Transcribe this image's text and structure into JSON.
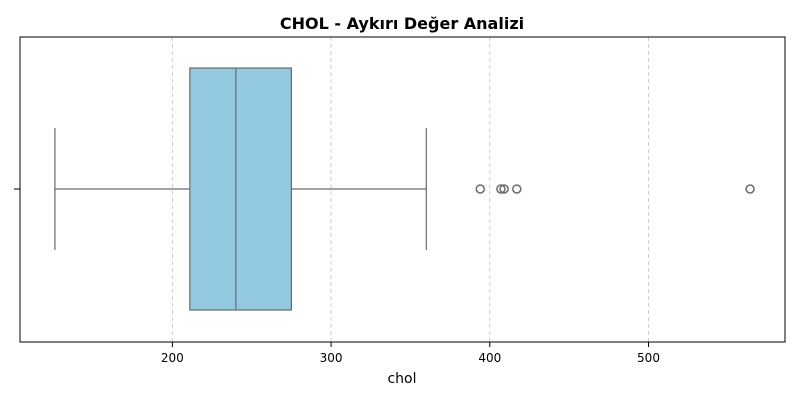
{
  "chart_data": {
    "type": "boxplot",
    "title": "CHOL - Aykırı Değer Analizi",
    "xlabel": "chol",
    "ylabel": "",
    "xlim": [
      104,
      586
    ],
    "xticks": [
      200,
      300,
      400,
      500
    ],
    "grid": "x-dashed",
    "box": {
      "whisker_low": 126,
      "q1": 211,
      "median": 240,
      "q3": 275,
      "whisker_high": 360
    },
    "outliers": [
      394,
      407,
      409,
      417,
      564
    ],
    "colors": {
      "box_fill": "#92c9e0",
      "box_edge": "#6b6b6b",
      "grid": "#cccccc"
    }
  }
}
